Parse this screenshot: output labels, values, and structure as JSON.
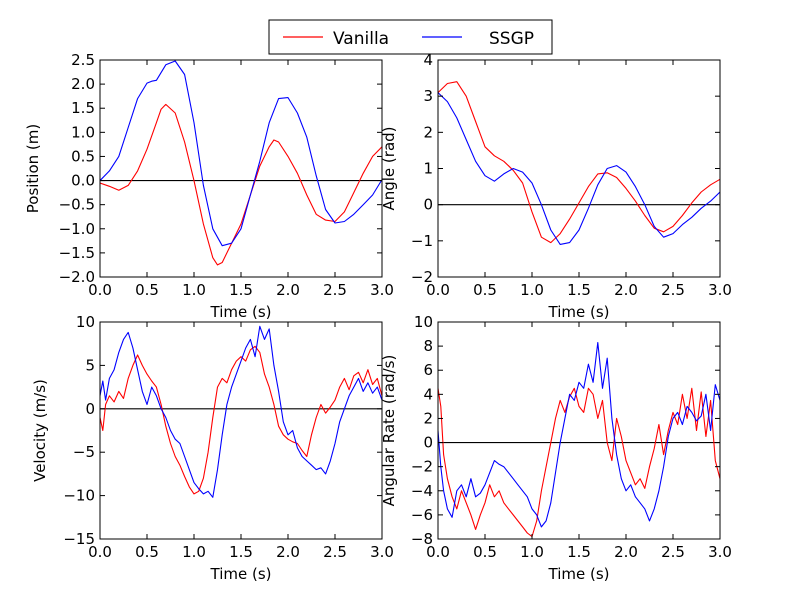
{
  "legend": {
    "entries": [
      {
        "label": "Vanilla",
        "color": "#ff0000"
      },
      {
        "label": "SSGP",
        "color": "#0000ff"
      }
    ],
    "position": "top-center"
  },
  "chart_data": [
    {
      "type": "line",
      "title": "",
      "xlabel": "Time (s)",
      "ylabel": "Position (m)",
      "xlim": [
        0,
        3
      ],
      "ylim": [
        -2,
        2.5
      ],
      "xticks": [
        0,
        0.5,
        1,
        1.5,
        2,
        2.5,
        3
      ],
      "xtick_labels": [
        "0.0",
        "0.5",
        "1.0",
        "1.5",
        "2.0",
        "2.5",
        "3.0"
      ],
      "yticks": [
        -2,
        -1.5,
        -1,
        -0.5,
        0,
        0.5,
        1,
        1.5,
        2,
        2.5
      ],
      "ytick_labels": [
        "−2.0",
        "−1.5",
        "−1.0",
        "−0.5",
        "0.0",
        "0.5",
        "1.0",
        "1.5",
        "2.0",
        "2.5"
      ],
      "zero_line": true,
      "series": [
        {
          "name": "Vanilla",
          "color": "#ff0000",
          "x": [
            0,
            0.1,
            0.2,
            0.3,
            0.4,
            0.5,
            0.6,
            0.65,
            0.7,
            0.8,
            0.9,
            1.0,
            1.1,
            1.2,
            1.25,
            1.3,
            1.4,
            1.5,
            1.6,
            1.7,
            1.8,
            1.85,
            1.9,
            2.0,
            2.1,
            2.2,
            2.3,
            2.4,
            2.5,
            2.6,
            2.7,
            2.8,
            2.9,
            3.0
          ],
          "y": [
            -0.05,
            -0.12,
            -0.2,
            -0.1,
            0.2,
            0.65,
            1.2,
            1.48,
            1.58,
            1.4,
            0.8,
            0.0,
            -0.9,
            -1.6,
            -1.75,
            -1.7,
            -1.3,
            -0.9,
            -0.3,
            0.3,
            0.7,
            0.84,
            0.8,
            0.5,
            0.15,
            -0.3,
            -0.7,
            -0.82,
            -0.85,
            -0.65,
            -0.25,
            0.15,
            0.5,
            0.7
          ]
        },
        {
          "name": "SSGP",
          "color": "#0000ff",
          "x": [
            0,
            0.1,
            0.2,
            0.3,
            0.4,
            0.5,
            0.55,
            0.6,
            0.7,
            0.8,
            0.9,
            1.0,
            1.1,
            1.2,
            1.3,
            1.4,
            1.5,
            1.6,
            1.7,
            1.8,
            1.9,
            2.0,
            2.1,
            2.2,
            2.3,
            2.4,
            2.5,
            2.6,
            2.7,
            2.8,
            2.9,
            3.0
          ],
          "y": [
            0.0,
            0.2,
            0.5,
            1.1,
            1.7,
            2.02,
            2.06,
            2.08,
            2.4,
            2.48,
            2.2,
            1.2,
            -0.1,
            -1.0,
            -1.35,
            -1.3,
            -1.0,
            -0.3,
            0.4,
            1.2,
            1.7,
            1.72,
            1.4,
            0.9,
            0.1,
            -0.6,
            -0.88,
            -0.85,
            -0.7,
            -0.5,
            -0.3,
            0.02
          ]
        }
      ]
    },
    {
      "type": "line",
      "title": "",
      "xlabel": "Time (s)",
      "ylabel": "Angle (rad)",
      "xlim": [
        0,
        3
      ],
      "ylim": [
        -2,
        4
      ],
      "xticks": [
        0,
        0.5,
        1,
        1.5,
        2,
        2.5,
        3
      ],
      "xtick_labels": [
        "0.0",
        "0.5",
        "1.0",
        "1.5",
        "2.0",
        "2.5",
        "3.0"
      ],
      "yticks": [
        -2,
        -1,
        0,
        1,
        2,
        3,
        4
      ],
      "ytick_labels": [
        "−2",
        "−1",
        "0",
        "1",
        "2",
        "3",
        "4"
      ],
      "zero_line": true,
      "series": [
        {
          "name": "Vanilla",
          "color": "#ff0000",
          "x": [
            0,
            0.1,
            0.2,
            0.3,
            0.4,
            0.5,
            0.6,
            0.7,
            0.8,
            0.9,
            1.0,
            1.1,
            1.2,
            1.3,
            1.4,
            1.5,
            1.6,
            1.7,
            1.8,
            1.9,
            2.0,
            2.1,
            2.2,
            2.3,
            2.4,
            2.5,
            2.6,
            2.7,
            2.8,
            2.9,
            3.0
          ],
          "y": [
            3.1,
            3.35,
            3.4,
            3.0,
            2.3,
            1.6,
            1.35,
            1.2,
            0.95,
            0.6,
            -0.2,
            -0.9,
            -1.05,
            -0.8,
            -0.4,
            0.05,
            0.5,
            0.85,
            0.88,
            0.75,
            0.45,
            0.1,
            -0.3,
            -0.65,
            -0.75,
            -0.6,
            -0.3,
            0.05,
            0.35,
            0.55,
            0.7
          ]
        },
        {
          "name": "SSGP",
          "color": "#0000ff",
          "x": [
            0,
            0.1,
            0.2,
            0.3,
            0.4,
            0.5,
            0.6,
            0.7,
            0.8,
            0.9,
            1.0,
            1.1,
            1.2,
            1.3,
            1.4,
            1.5,
            1.6,
            1.7,
            1.8,
            1.9,
            2.0,
            2.1,
            2.2,
            2.3,
            2.4,
            2.5,
            2.6,
            2.7,
            2.8,
            2.9,
            3.0
          ],
          "y": [
            3.1,
            2.85,
            2.4,
            1.8,
            1.2,
            0.8,
            0.65,
            0.85,
            1.0,
            0.9,
            0.6,
            0.0,
            -0.7,
            -1.1,
            -1.05,
            -0.7,
            -0.1,
            0.55,
            1.0,
            1.08,
            0.9,
            0.5,
            0.0,
            -0.6,
            -0.9,
            -0.8,
            -0.55,
            -0.35,
            -0.1,
            0.1,
            0.35
          ]
        }
      ]
    },
    {
      "type": "line",
      "title": "",
      "xlabel": "Time (s)",
      "ylabel": "Velocity (m/s)",
      "xlim": [
        0,
        3
      ],
      "ylim": [
        -15,
        10
      ],
      "xticks": [
        0,
        0.5,
        1,
        1.5,
        2,
        2.5,
        3
      ],
      "xtick_labels": [
        "0.0",
        "0.5",
        "1.0",
        "1.5",
        "2.0",
        "2.5",
        "3.0"
      ],
      "yticks": [
        -15,
        -10,
        -5,
        0,
        5,
        10
      ],
      "ytick_labels": [
        "−15",
        "−10",
        "−5",
        "0",
        "5",
        "10"
      ],
      "zero_line": true,
      "series": [
        {
          "name": "Vanilla",
          "color": "#ff0000",
          "x": [
            0,
            0.03,
            0.06,
            0.1,
            0.15,
            0.2,
            0.25,
            0.3,
            0.35,
            0.4,
            0.45,
            0.5,
            0.55,
            0.6,
            0.65,
            0.7,
            0.75,
            0.8,
            0.85,
            0.9,
            0.95,
            1.0,
            1.05,
            1.1,
            1.15,
            1.2,
            1.25,
            1.3,
            1.35,
            1.4,
            1.45,
            1.5,
            1.55,
            1.6,
            1.65,
            1.7,
            1.75,
            1.8,
            1.85,
            1.9,
            1.95,
            2.0,
            2.05,
            2.1,
            2.15,
            2.2,
            2.25,
            2.3,
            2.35,
            2.4,
            2.45,
            2.5,
            2.55,
            2.6,
            2.65,
            2.7,
            2.75,
            2.8,
            2.85,
            2.9,
            2.95,
            3.0
          ],
          "y": [
            -1,
            -2.5,
            0.5,
            1.5,
            0.8,
            2.0,
            1.2,
            3.5,
            5.0,
            6.2,
            5.0,
            4.0,
            3.2,
            2.5,
            0.5,
            -2.0,
            -4.0,
            -5.5,
            -6.5,
            -7.8,
            -9.0,
            -9.8,
            -9.5,
            -8.0,
            -5.0,
            -1.0,
            2.5,
            3.5,
            3.0,
            4.5,
            5.5,
            6.0,
            5.5,
            6.8,
            7.2,
            6.5,
            4.0,
            2.5,
            0.5,
            -2.0,
            -3.0,
            -3.5,
            -3.8,
            -4.0,
            -4.8,
            -5.5,
            -3.0,
            -1.0,
            0.5,
            -0.5,
            0.2,
            1.0,
            2.5,
            3.5,
            2.2,
            3.8,
            4.2,
            3.0,
            4.5,
            2.8,
            3.5,
            1.5
          ]
        },
        {
          "name": "SSGP",
          "color": "#0000ff",
          "x": [
            0,
            0.03,
            0.06,
            0.1,
            0.15,
            0.2,
            0.25,
            0.3,
            0.35,
            0.4,
            0.45,
            0.5,
            0.55,
            0.6,
            0.65,
            0.7,
            0.75,
            0.8,
            0.85,
            0.9,
            0.95,
            1.0,
            1.05,
            1.1,
            1.15,
            1.2,
            1.25,
            1.3,
            1.35,
            1.4,
            1.45,
            1.5,
            1.55,
            1.6,
            1.65,
            1.7,
            1.75,
            1.8,
            1.85,
            1.9,
            1.95,
            2.0,
            2.05,
            2.1,
            2.15,
            2.2,
            2.25,
            2.3,
            2.35,
            2.4,
            2.45,
            2.5,
            2.55,
            2.6,
            2.65,
            2.7,
            2.75,
            2.8,
            2.85,
            2.9,
            2.95,
            3.0
          ],
          "y": [
            1.5,
            3.2,
            1.0,
            3.5,
            4.5,
            6.5,
            8.0,
            8.8,
            7.0,
            4.5,
            2.0,
            0.5,
            2.5,
            1.5,
            0.0,
            -1.0,
            -2.5,
            -3.5,
            -4.0,
            -5.5,
            -7.0,
            -8.5,
            -9.2,
            -9.8,
            -9.5,
            -10.2,
            -7.0,
            -3.0,
            0.5,
            2.5,
            4.0,
            5.5,
            7.0,
            8.0,
            6.0,
            9.5,
            8.0,
            9.2,
            5.0,
            2.0,
            -1.5,
            -3.0,
            -2.5,
            -4.5,
            -5.5,
            -6.0,
            -6.5,
            -7.0,
            -6.8,
            -7.5,
            -6.0,
            -4.0,
            -1.5,
            0.0,
            1.5,
            2.5,
            3.5,
            2.0,
            3.0,
            1.8,
            2.5,
            1.0
          ]
        }
      ]
    },
    {
      "type": "line",
      "title": "",
      "xlabel": "Time (s)",
      "ylabel": "Angular Rate (rad/s)",
      "xlim": [
        0,
        3
      ],
      "ylim": [
        -8,
        10
      ],
      "xticks": [
        0,
        0.5,
        1,
        1.5,
        2,
        2.5,
        3
      ],
      "xtick_labels": [
        "0.0",
        "0.5",
        "1.0",
        "1.5",
        "2.0",
        "2.5",
        "3.0"
      ],
      "yticks": [
        -8,
        -6,
        -4,
        -2,
        0,
        2,
        4,
        6,
        8,
        10
      ],
      "ytick_labels": [
        "−8",
        "−6",
        "−4",
        "−2",
        "0",
        "2",
        "4",
        "6",
        "8",
        "10"
      ],
      "zero_line": true,
      "series": [
        {
          "name": "Vanilla",
          "color": "#ff0000",
          "x": [
            0,
            0.03,
            0.06,
            0.1,
            0.15,
            0.2,
            0.25,
            0.3,
            0.35,
            0.4,
            0.45,
            0.5,
            0.55,
            0.6,
            0.65,
            0.7,
            0.75,
            0.8,
            0.85,
            0.9,
            0.95,
            1.0,
            1.05,
            1.1,
            1.15,
            1.2,
            1.25,
            1.3,
            1.35,
            1.4,
            1.45,
            1.5,
            1.55,
            1.6,
            1.65,
            1.7,
            1.75,
            1.8,
            1.85,
            1.9,
            1.95,
            2.0,
            2.05,
            2.1,
            2.15,
            2.2,
            2.25,
            2.3,
            2.35,
            2.4,
            2.45,
            2.5,
            2.55,
            2.6,
            2.65,
            2.7,
            2.75,
            2.8,
            2.85,
            2.9,
            2.95,
            3.0
          ],
          "y": [
            4.5,
            3.0,
            -1.0,
            -3.0,
            -4.5,
            -5.5,
            -4.0,
            -5.0,
            -6.0,
            -7.2,
            -6.0,
            -5.0,
            -3.5,
            -4.5,
            -4.0,
            -5.0,
            -5.5,
            -6.0,
            -6.5,
            -7.0,
            -7.5,
            -7.8,
            -6.5,
            -4.0,
            -2.0,
            0.0,
            2.0,
            3.5,
            2.5,
            3.8,
            4.5,
            3.0,
            2.5,
            4.5,
            4.0,
            2.0,
            3.5,
            0.0,
            -1.5,
            2.0,
            0.5,
            -1.5,
            -2.5,
            -3.5,
            -3.0,
            -3.8,
            -2.0,
            -0.5,
            1.5,
            -1.0,
            1.0,
            2.5,
            1.5,
            4.0,
            2.0,
            4.5,
            1.0,
            4.2,
            0.5,
            3.5,
            -1.5,
            -3.0
          ]
        },
        {
          "name": "SSGP",
          "color": "#0000ff",
          "x": [
            0,
            0.03,
            0.06,
            0.1,
            0.15,
            0.2,
            0.25,
            0.3,
            0.35,
            0.4,
            0.45,
            0.5,
            0.55,
            0.6,
            0.65,
            0.7,
            0.75,
            0.8,
            0.85,
            0.9,
            0.95,
            1.0,
            1.05,
            1.1,
            1.15,
            1.2,
            1.25,
            1.3,
            1.35,
            1.4,
            1.45,
            1.5,
            1.55,
            1.6,
            1.65,
            1.7,
            1.75,
            1.8,
            1.85,
            1.9,
            1.95,
            2.0,
            2.05,
            2.1,
            2.15,
            2.2,
            2.25,
            2.3,
            2.35,
            2.4,
            2.45,
            2.5,
            2.55,
            2.6,
            2.65,
            2.7,
            2.75,
            2.8,
            2.85,
            2.9,
            2.95,
            3.0
          ],
          "y": [
            1.0,
            -2.0,
            -4.0,
            -5.5,
            -6.2,
            -4.0,
            -3.5,
            -4.5,
            -3.0,
            -4.5,
            -4.2,
            -3.5,
            -2.5,
            -1.5,
            -1.8,
            -2.0,
            -2.5,
            -3.0,
            -3.5,
            -4.0,
            -4.5,
            -5.5,
            -6.0,
            -7.0,
            -6.5,
            -5.0,
            -2.5,
            0.0,
            2.0,
            4.0,
            3.5,
            5.0,
            4.5,
            6.5,
            5.0,
            8.3,
            4.5,
            7.0,
            2.0,
            -1.0,
            -3.0,
            -4.0,
            -3.5,
            -4.5,
            -5.0,
            -5.5,
            -6.5,
            -5.5,
            -4.0,
            -2.0,
            0.5,
            2.0,
            2.5,
            1.5,
            3.0,
            2.5,
            1.8,
            2.2,
            4.0,
            1.0,
            4.8,
            3.5
          ]
        }
      ]
    }
  ]
}
